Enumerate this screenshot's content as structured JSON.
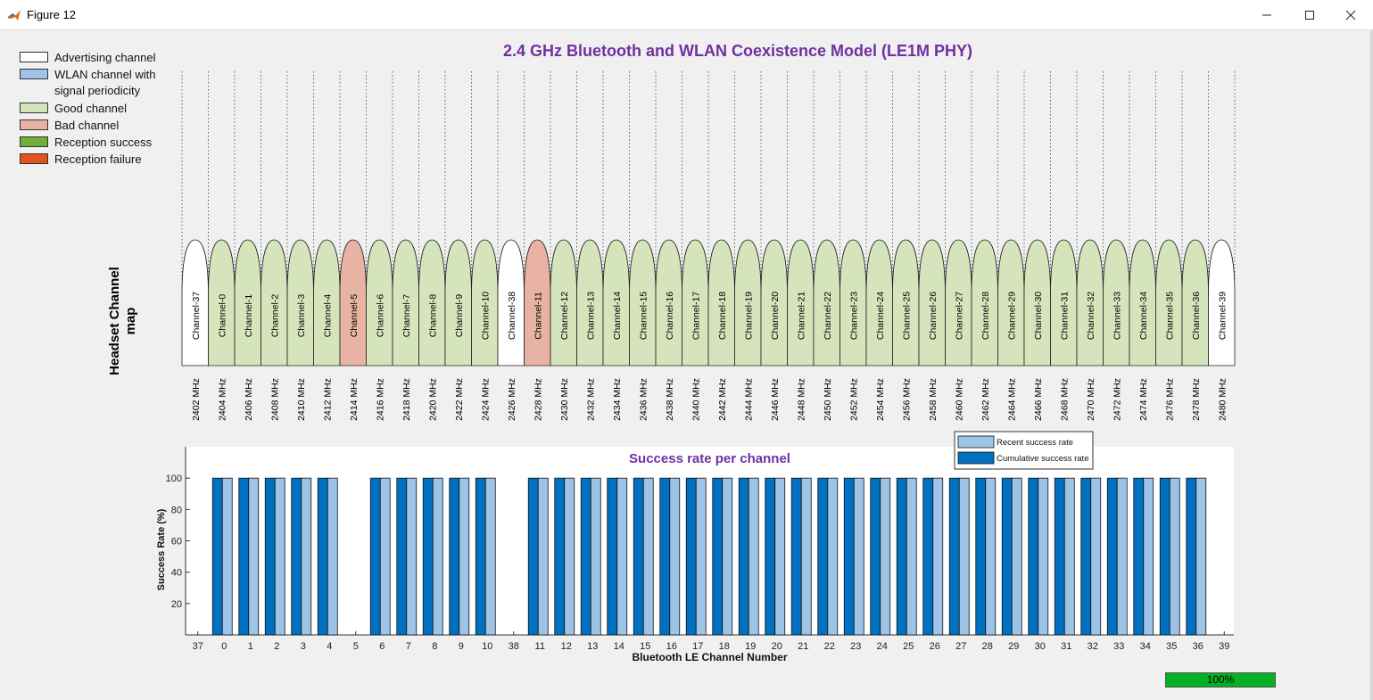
{
  "window": {
    "title": "Figure 12"
  },
  "figure_title": "2.4 GHz Bluetooth and WLAN Coexistence Model (LE1M PHY)",
  "legend": [
    {
      "label": "Advertising channel",
      "color": "#ffffff"
    },
    {
      "label": "WLAN channel with signal periodicity",
      "color": "#9dc3e6"
    },
    {
      "label": "Good channel",
      "color": "#d6e4bc"
    },
    {
      "label": "Bad channel",
      "color": "#e8b3a3"
    },
    {
      "label": "Reception success",
      "color": "#70ad3a"
    },
    {
      "label": "Reception failure",
      "color": "#e2521e"
    }
  ],
  "headset_label": "Headset Channel map",
  "colors": {
    "advertising": "#ffffff",
    "good": "#d6e4bc",
    "bad": "#e8b3a3",
    "recent": "#9dc3e6",
    "cumulative": "#0070c0",
    "title_purple": "#7030a0",
    "progress_green": "#06b025"
  },
  "channel_map": {
    "channels": [
      {
        "label": "Channel-37",
        "freq": "2402 MHz",
        "state": "advertising"
      },
      {
        "label": "Channel-0",
        "freq": "2404 MHz",
        "state": "good"
      },
      {
        "label": "Channel-1",
        "freq": "2406 MHz",
        "state": "good"
      },
      {
        "label": "Channel-2",
        "freq": "2408 MHz",
        "state": "good"
      },
      {
        "label": "Channel-3",
        "freq": "2410 MHz",
        "state": "good"
      },
      {
        "label": "Channel-4",
        "freq": "2412 MHz",
        "state": "good"
      },
      {
        "label": "Channel-5",
        "freq": "2414 MHz",
        "state": "bad"
      },
      {
        "label": "Channel-6",
        "freq": "2416 MHz",
        "state": "good"
      },
      {
        "label": "Channel-7",
        "freq": "2418 MHz",
        "state": "good"
      },
      {
        "label": "Channel-8",
        "freq": "2420 MHz",
        "state": "good"
      },
      {
        "label": "Channel-9",
        "freq": "2422 MHz",
        "state": "good"
      },
      {
        "label": "Channel-10",
        "freq": "2424 MHz",
        "state": "good"
      },
      {
        "label": "Channel-38",
        "freq": "2426 MHz",
        "state": "advertising"
      },
      {
        "label": "Channel-11",
        "freq": "2428 MHz",
        "state": "bad"
      },
      {
        "label": "Channel-12",
        "freq": "2430 MHz",
        "state": "good"
      },
      {
        "label": "Channel-13",
        "freq": "2432 MHz",
        "state": "good"
      },
      {
        "label": "Channel-14",
        "freq": "2434 MHz",
        "state": "good"
      },
      {
        "label": "Channel-15",
        "freq": "2436 MHz",
        "state": "good"
      },
      {
        "label": "Channel-16",
        "freq": "2438 MHz",
        "state": "good"
      },
      {
        "label": "Channel-17",
        "freq": "2440 MHz",
        "state": "good"
      },
      {
        "label": "Channel-18",
        "freq": "2442 MHz",
        "state": "good"
      },
      {
        "label": "Channel-19",
        "freq": "2444 MHz",
        "state": "good"
      },
      {
        "label": "Channel-20",
        "freq": "2446 MHz",
        "state": "good"
      },
      {
        "label": "Channel-21",
        "freq": "2448 MHz",
        "state": "good"
      },
      {
        "label": "Channel-22",
        "freq": "2450 MHz",
        "state": "good"
      },
      {
        "label": "Channel-23",
        "freq": "2452 MHz",
        "state": "good"
      },
      {
        "label": "Channel-24",
        "freq": "2454 MHz",
        "state": "good"
      },
      {
        "label": "Channel-25",
        "freq": "2456 MHz",
        "state": "good"
      },
      {
        "label": "Channel-26",
        "freq": "2458 MHz",
        "state": "good"
      },
      {
        "label": "Channel-27",
        "freq": "2460 MHz",
        "state": "good"
      },
      {
        "label": "Channel-28",
        "freq": "2462 MHz",
        "state": "good"
      },
      {
        "label": "Channel-29",
        "freq": "2464 MHz",
        "state": "good"
      },
      {
        "label": "Channel-30",
        "freq": "2466 MHz",
        "state": "good"
      },
      {
        "label": "Channel-31",
        "freq": "2468 MHz",
        "state": "good"
      },
      {
        "label": "Channel-32",
        "freq": "2470 MHz",
        "state": "good"
      },
      {
        "label": "Channel-33",
        "freq": "2472 MHz",
        "state": "good"
      },
      {
        "label": "Channel-34",
        "freq": "2474 MHz",
        "state": "good"
      },
      {
        "label": "Channel-35",
        "freq": "2476 MHz",
        "state": "good"
      },
      {
        "label": "Channel-36",
        "freq": "2478 MHz",
        "state": "good"
      },
      {
        "label": "Channel-39",
        "freq": "2480 MHz",
        "state": "advertising"
      }
    ]
  },
  "chart_data": {
    "type": "bar",
    "title": "Success rate per channel",
    "xlabel": "Bluetooth LE Channel Number",
    "ylabel": "Success Rate (%)",
    "ylim": [
      0,
      120
    ],
    "yticks": [
      20,
      40,
      60,
      80,
      100
    ],
    "grid": false,
    "legend_position": "top-right",
    "categories": [
      "37",
      "0",
      "1",
      "2",
      "3",
      "4",
      "5",
      "6",
      "7",
      "8",
      "9",
      "10",
      "38",
      "11",
      "12",
      "13",
      "14",
      "15",
      "16",
      "17",
      "18",
      "19",
      "20",
      "21",
      "22",
      "23",
      "24",
      "25",
      "26",
      "27",
      "28",
      "29",
      "30",
      "31",
      "32",
      "33",
      "34",
      "35",
      "36",
      "39"
    ],
    "series": [
      {
        "name": "Recent success rate",
        "values": [
          null,
          100,
          100,
          100,
          100,
          100,
          null,
          100,
          100,
          100,
          100,
          100,
          null,
          100,
          100,
          100,
          100,
          100,
          100,
          100,
          100,
          100,
          100,
          100,
          100,
          100,
          100,
          100,
          100,
          100,
          100,
          100,
          100,
          100,
          100,
          100,
          100,
          100,
          100,
          null
        ]
      },
      {
        "name": "Cumulative success rate",
        "values": [
          null,
          100,
          100,
          100,
          100,
          100,
          null,
          100,
          100,
          100,
          100,
          100,
          null,
          100,
          100,
          100,
          100,
          100,
          100,
          100,
          100,
          100,
          100,
          100,
          100,
          100,
          100,
          100,
          100,
          100,
          100,
          100,
          100,
          100,
          100,
          100,
          100,
          100,
          100,
          null
        ]
      }
    ]
  },
  "progress": {
    "value": 1.0,
    "label": "100%"
  }
}
